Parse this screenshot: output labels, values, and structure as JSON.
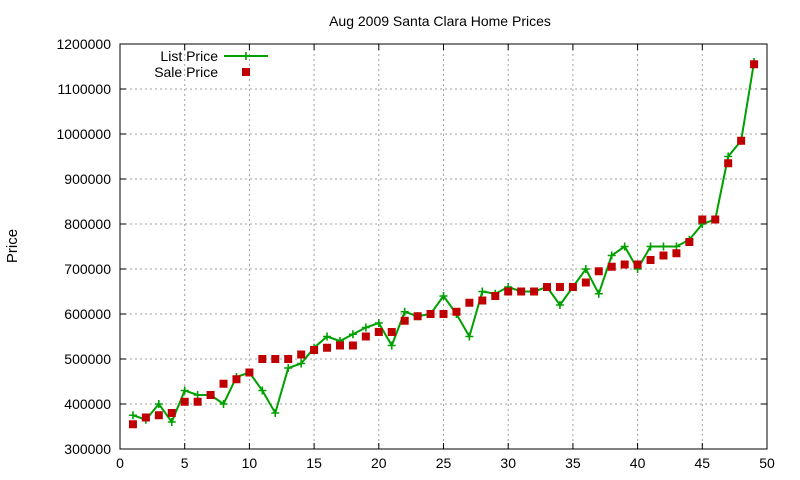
{
  "chart_data": {
    "type": "line",
    "title": "Aug 2009 Santa Clara Home Prices",
    "xlabel": "",
    "ylabel": "Price",
    "xlim": [
      0,
      50
    ],
    "ylim": [
      300000,
      1200000
    ],
    "x_ticks": [
      "0",
      "5",
      "10",
      "15",
      "20",
      "25",
      "30",
      "35",
      "40",
      "45",
      "50"
    ],
    "y_ticks": [
      "300000",
      "400000",
      "500000",
      "600000",
      "700000",
      "800000",
      "900000",
      "1000000",
      "1100000",
      "1200000"
    ],
    "grid": true,
    "legend_position": "top-left",
    "x": [
      1,
      2,
      3,
      4,
      5,
      6,
      7,
      8,
      9,
      10,
      11,
      12,
      13,
      14,
      15,
      16,
      17,
      18,
      19,
      20,
      21,
      22,
      23,
      24,
      25,
      26,
      27,
      28,
      29,
      30,
      31,
      32,
      33,
      34,
      35,
      36,
      37,
      38,
      39,
      40,
      41,
      42,
      43,
      44,
      45,
      46,
      47,
      48,
      49
    ],
    "series": [
      {
        "name": "List Price",
        "style": "line-plus",
        "color": "#00a000",
        "values": [
          375000,
          365000,
          400000,
          360000,
          430000,
          420000,
          420000,
          400000,
          460000,
          470000,
          430000,
          380000,
          480000,
          490000,
          525000,
          550000,
          540000,
          555000,
          570000,
          580000,
          530000,
          605000,
          595000,
          600000,
          640000,
          600000,
          550000,
          650000,
          645000,
          660000,
          650000,
          650000,
          660000,
          620000,
          660000,
          700000,
          645000,
          730000,
          750000,
          700000,
          750000,
          750000,
          750000,
          765000,
          800000,
          810000,
          950000,
          985000,
          1160000
        ]
      },
      {
        "name": "Sale Price",
        "style": "square-points",
        "color": "#c00000",
        "values": [
          355000,
          370000,
          375000,
          380000,
          405000,
          405000,
          420000,
          445000,
          455000,
          470000,
          500000,
          500000,
          500000,
          510000,
          520000,
          525000,
          530000,
          530000,
          550000,
          560000,
          560000,
          585000,
          595000,
          600000,
          600000,
          605000,
          625000,
          630000,
          640000,
          650000,
          650000,
          650000,
          660000,
          660000,
          660000,
          670000,
          695000,
          705000,
          710000,
          710000,
          720000,
          730000,
          735000,
          760000,
          810000,
          810000,
          935000,
          985000,
          1155000
        ]
      }
    ]
  }
}
